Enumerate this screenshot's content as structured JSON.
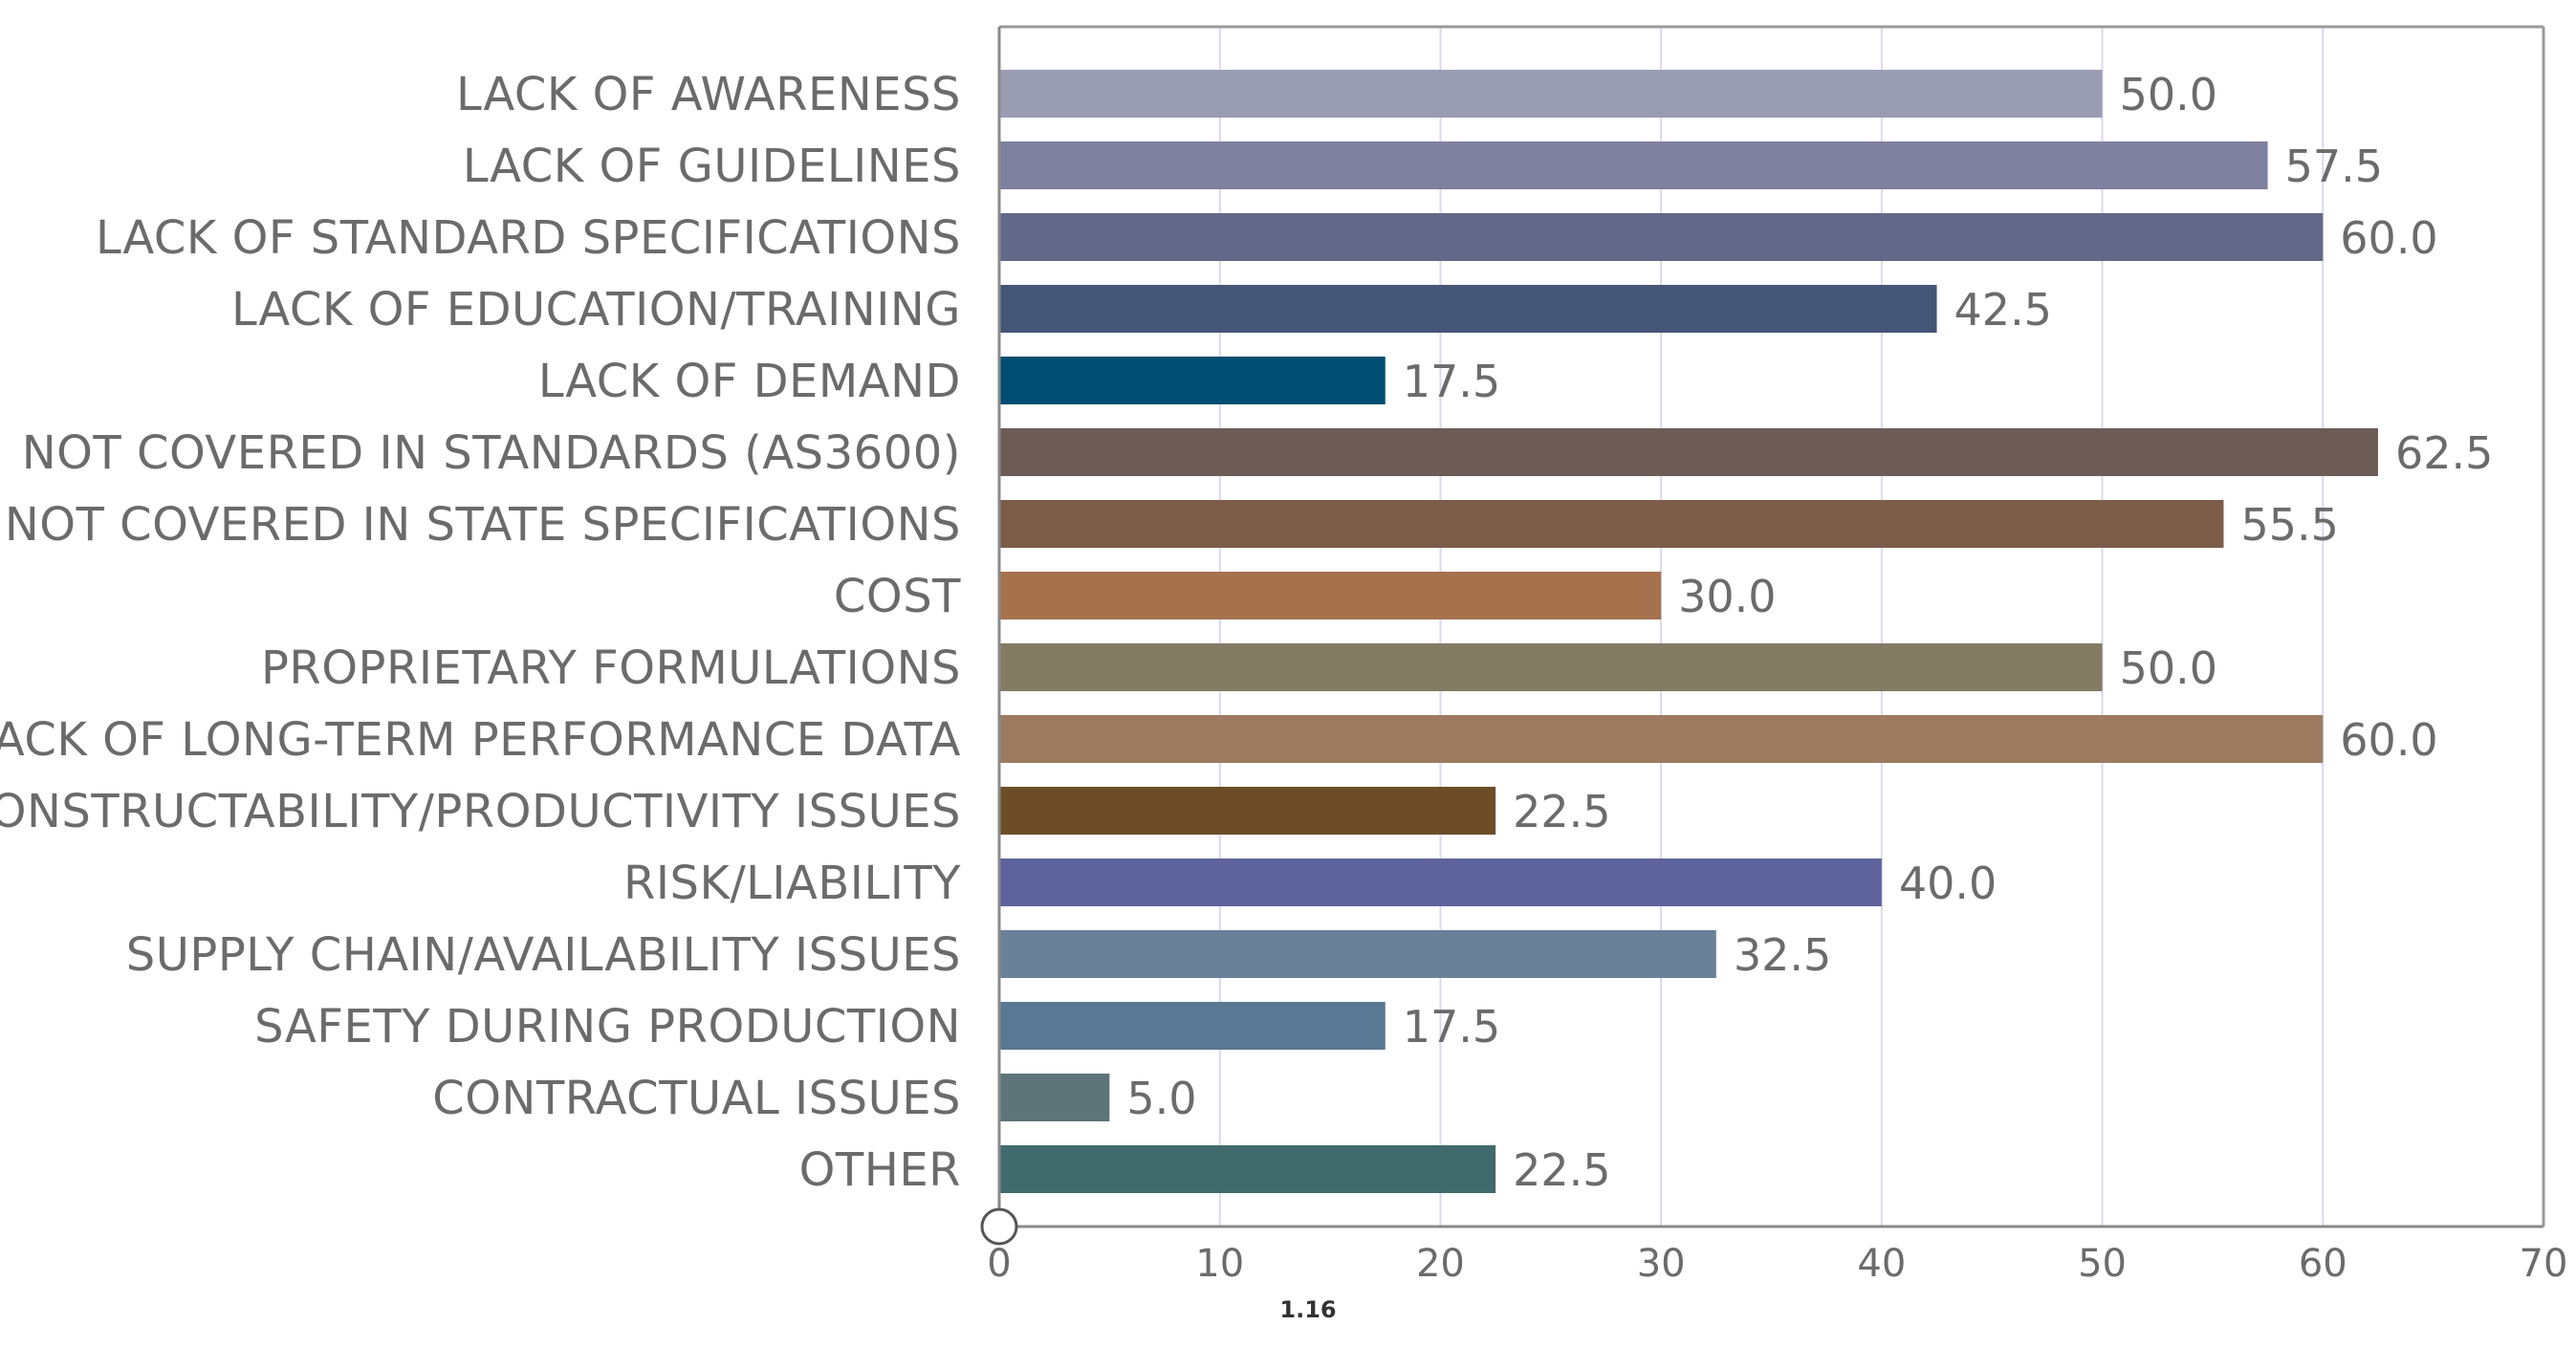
{
  "chart_data": {
    "type": "bar",
    "orientation": "horizontal",
    "title": "",
    "xlabel": "",
    "ylabel": "",
    "xlim": [
      0,
      70
    ],
    "xticks": [
      0,
      10,
      20,
      30,
      40,
      50,
      60,
      70
    ],
    "grid": true,
    "categories": [
      "LACK OF AWARENESS",
      "LACK OF GUIDELINES",
      "LACK OF STANDARD SPECIFICATIONS",
      "LACK OF EDUCATION/TRAINING",
      "LACK OF DEMAND",
      "NOT COVERED IN STANDARDS (AS3600)",
      "NOT COVERED IN STATE SPECIFICATIONS",
      "COST",
      "PROPRIETARY FORMULATIONS",
      "LACK OF LONG-TERM PERFORMANCE DATA",
      "CONSTRUCTABILITY/PRODUCTIVITY ISSUES",
      "RISK/LIABILITY",
      "SUPPLY CHAIN/AVAILABILITY ISSUES",
      "SAFETY DURING PRODUCTION",
      "CONTRACTUAL ISSUES",
      "OTHER"
    ],
    "values": [
      50.0,
      57.5,
      60.0,
      42.5,
      17.5,
      62.5,
      55.5,
      30.0,
      50.0,
      60.0,
      22.5,
      40.0,
      32.5,
      17.5,
      5.0,
      22.5
    ],
    "value_labels": [
      "50.0",
      "57.5",
      "60.0",
      "42.5",
      "17.5",
      "62.5",
      "55.5",
      "30.0",
      "50.0",
      "60.0",
      "22.5",
      "40.0",
      "32.5",
      "17.5",
      "5.0",
      "22.5"
    ],
    "colors": [
      "#9a9cb2",
      "#7e809f",
      "#616888",
      "#445676",
      "#004e73",
      "#6d5b55",
      "#7b5c48",
      "#a5724d",
      "#837b63",
      "#9c7b61",
      "#6c4d28",
      "#5d629c",
      "#6b8099",
      "#587893",
      "#5d7579",
      "#406a6c"
    ],
    "footnote": "1.16"
  }
}
